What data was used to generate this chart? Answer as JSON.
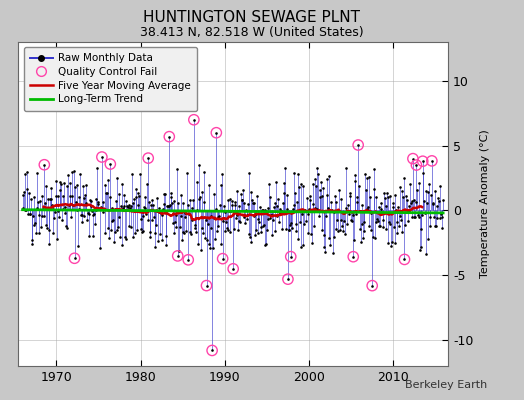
{
  "title": "HUNTINGTON SEWAGE PLNT",
  "subtitle": "38.413 N, 82.518 W (United States)",
  "ylabel": "Temperature Anomaly (°C)",
  "attribution": "Berkeley Earth",
  "ylim": [
    -12,
    13
  ],
  "yticks": [
    -10,
    -5,
    0,
    5,
    10
  ],
  "xlim": [
    1965.5,
    2016.5
  ],
  "xticks": [
    1970,
    1980,
    1990,
    2000,
    2010
  ],
  "fig_bg_color": "#c8c8c8",
  "plot_bg_color": "#ffffff",
  "line_color": "#3333cc",
  "dot_color": "#000000",
  "ma_color": "#cc0000",
  "trend_color": "#00bb00",
  "qc_color": "#ff44aa",
  "title_fontsize": 11,
  "subtitle_fontsize": 9,
  "tick_labelsize": 9,
  "ylabel_fontsize": 8,
  "legend_fontsize": 7.5,
  "attribution_fontsize": 8,
  "seed": 42
}
